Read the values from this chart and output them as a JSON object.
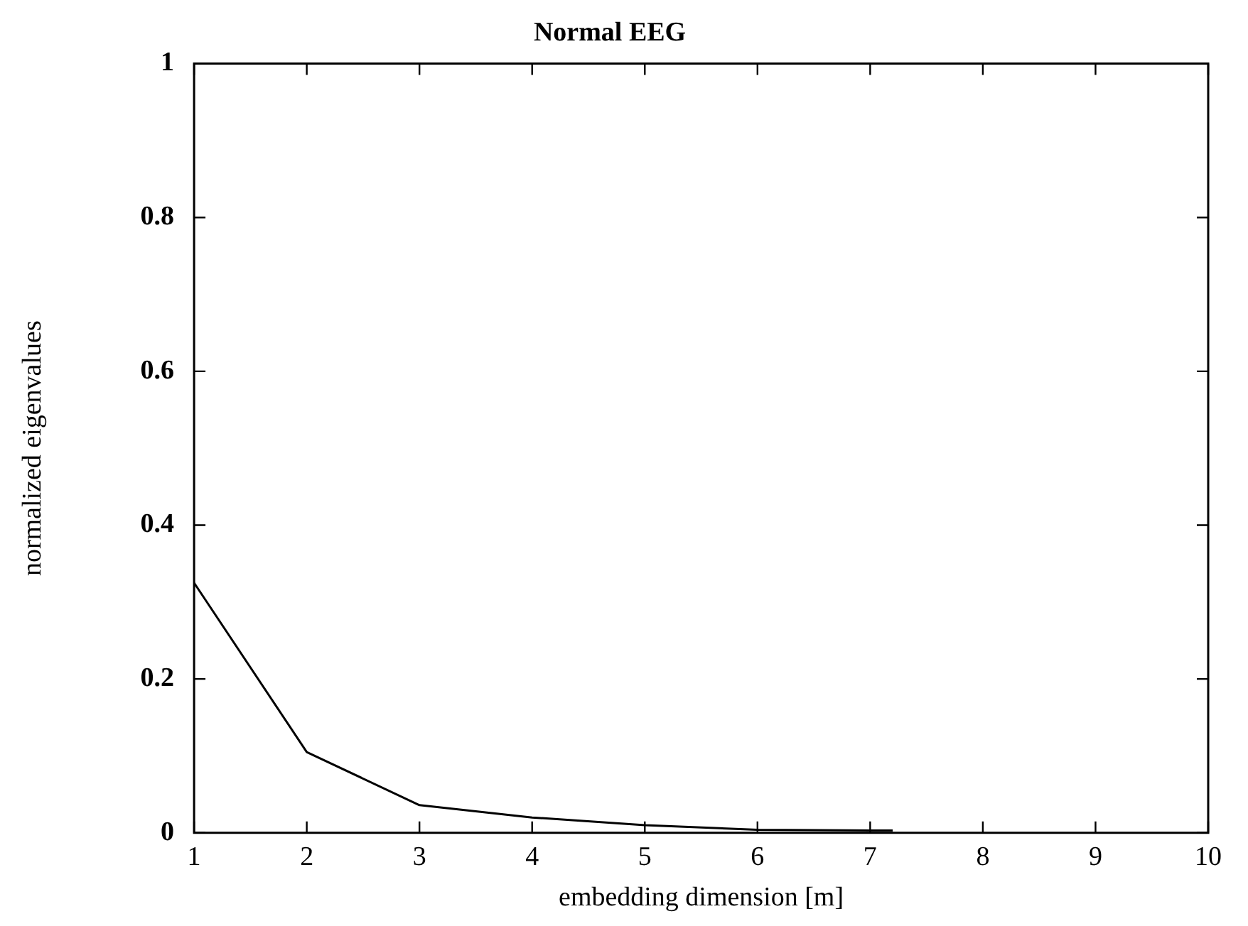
{
  "chart_data": {
    "type": "line",
    "title": "Normal EEG",
    "xlabel": "embedding dimension [m]",
    "ylabel": "normalized eigenvalues",
    "x": [
      1,
      2,
      3,
      4,
      5,
      6,
      7,
      7.2
    ],
    "series": [
      {
        "color": "#000000",
        "values": [
          0.325,
          0.105,
          0.036,
          0.02,
          0.01,
          0.004,
          0.003,
          0.003
        ]
      }
    ],
    "xlim": [
      1,
      10
    ],
    "xticks": [
      1,
      2,
      3,
      4,
      5,
      6,
      7,
      8,
      9,
      10
    ],
    "ylim": [
      0,
      1
    ],
    "yticks": [
      0,
      0.2,
      0.4,
      0.6,
      0.8,
      1
    ],
    "grid": false,
    "legend": false,
    "marker": "none",
    "line_style": "solid"
  }
}
